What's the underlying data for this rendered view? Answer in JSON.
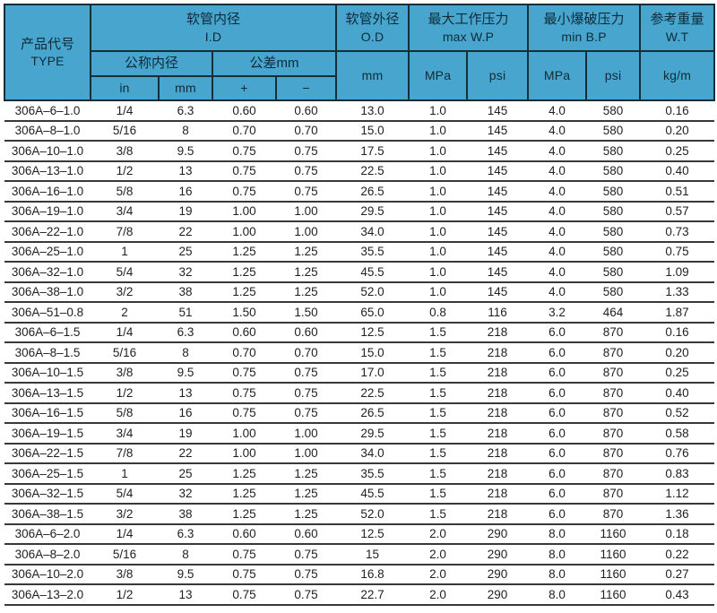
{
  "table": {
    "header": {
      "product_type": {
        "zh": "产品代号",
        "en": "TYPE"
      },
      "id_group": {
        "zh": "软管内径",
        "en": "I.D"
      },
      "nominal_id": "公称内径",
      "tolerance": "公差mm",
      "sub_in": "in",
      "sub_mm": "mm",
      "sub_plus": "+",
      "sub_minus": "−",
      "od_group": {
        "zh": "软管外径",
        "en": "O.D",
        "unit": "mm"
      },
      "wp_group": {
        "zh": "最大工作压力",
        "en": "max W.P",
        "unit_mpa": "MPa",
        "unit_psi": "psi"
      },
      "bp_group": {
        "zh": "最小爆破压力",
        "en": "min B.P",
        "unit_mpa": "MPa",
        "unit_psi": "psi"
      },
      "wt_group": {
        "zh": "参考重量",
        "en": "W.T",
        "unit": "kg/m"
      }
    },
    "column_keys": [
      "type",
      "id-in",
      "id-mm",
      "tol-plus",
      "tol-minus",
      "od-mm",
      "wp-mpa",
      "wp-psi",
      "bp-mpa",
      "bp-psi",
      "wt-kgm"
    ],
    "rows": [
      [
        "306A–6–1.0",
        "1/4",
        "6.3",
        "0.60",
        "0.60",
        "13.0",
        "1.0",
        "145",
        "4.0",
        "580",
        "0.16"
      ],
      [
        "306A–8–1.0",
        "5/16",
        "8",
        "0.70",
        "0.70",
        "15.0",
        "1.0",
        "145",
        "4.0",
        "580",
        "0.20"
      ],
      [
        "306A–10–1.0",
        "3/8",
        "9.5",
        "0.75",
        "0.75",
        "17.5",
        "1.0",
        "145",
        "4.0",
        "580",
        "0.25"
      ],
      [
        "306A–13–1.0",
        "1/2",
        "13",
        "0.75",
        "0.75",
        "22.5",
        "1.0",
        "145",
        "4.0",
        "580",
        "0.40"
      ],
      [
        "306A–16–1.0",
        "5/8",
        "16",
        "0.75",
        "0.75",
        "26.5",
        "1.0",
        "145",
        "4.0",
        "580",
        "0.51"
      ],
      [
        "306A–19–1.0",
        "3/4",
        "19",
        "1.00",
        "1.00",
        "29.5",
        "1.0",
        "145",
        "4.0",
        "580",
        "0.57"
      ],
      [
        "306A–22–1.0",
        "7/8",
        "22",
        "1.00",
        "1.00",
        "34.0",
        "1.0",
        "145",
        "4.0",
        "580",
        "0.73"
      ],
      [
        "306A–25–1.0",
        "1",
        "25",
        "1.25",
        "1.25",
        "35.5",
        "1.0",
        "145",
        "4.0",
        "580",
        "0.75"
      ],
      [
        "306A–32–1.0",
        "5/4",
        "32",
        "1.25",
        "1.25",
        "45.5",
        "1.0",
        "145",
        "4.0",
        "580",
        "1.09"
      ],
      [
        "306A–38–1.0",
        "3/2",
        "38",
        "1.25",
        "1.25",
        "52.0",
        "1.0",
        "145",
        "4.0",
        "580",
        "1.33"
      ],
      [
        "306A–51–0.8",
        "2",
        "51",
        "1.50",
        "1.50",
        "65.0",
        "0.8",
        "116",
        "3.2",
        "464",
        "1.87"
      ],
      [
        "306A–6–1.5",
        "1/4",
        "6.3",
        "0.60",
        "0.60",
        "12.5",
        "1.5",
        "218",
        "6.0",
        "870",
        "0.16"
      ],
      [
        "306A–8–1.5",
        "5/16",
        "8",
        "0.70",
        "0.70",
        "15.0",
        "1.5",
        "218",
        "6.0",
        "870",
        "0.20"
      ],
      [
        "306A–10–1.5",
        "3/8",
        "9.5",
        "0.75",
        "0.75",
        "17.0",
        "1.5",
        "218",
        "6.0",
        "870",
        "0.25"
      ],
      [
        "306A–13–1.5",
        "1/2",
        "13",
        "0.75",
        "0.75",
        "22.5",
        "1.5",
        "218",
        "6.0",
        "870",
        "0.40"
      ],
      [
        "306A–16–1.5",
        "5/8",
        "16",
        "0.75",
        "0.75",
        "26.5",
        "1.5",
        "218",
        "6.0",
        "870",
        "0.52"
      ],
      [
        "306A–19–1.5",
        "3/4",
        "19",
        "1.00",
        "1.00",
        "29.5",
        "1.5",
        "218",
        "6.0",
        "870",
        "0.58"
      ],
      [
        "306A–22–1.5",
        "7/8",
        "22",
        "1.00",
        "1.00",
        "34.0",
        "1.5",
        "218",
        "6.0",
        "870",
        "0.76"
      ],
      [
        "306A–25–1.5",
        "1",
        "25",
        "1.25",
        "1.25",
        "35.5",
        "1.5",
        "218",
        "6.0",
        "870",
        "0.83"
      ],
      [
        "306A–32–1.5",
        "5/4",
        "32",
        "1.25",
        "1.25",
        "45.5",
        "1.5",
        "218",
        "6.0",
        "870",
        "1.12"
      ],
      [
        "306A–38–1.5",
        "3/2",
        "38",
        "1.25",
        "1.25",
        "52.0",
        "1.5",
        "218",
        "6.0",
        "870",
        "1.36"
      ],
      [
        "306A–6–2.0",
        "1/4",
        "6.3",
        "0.60",
        "0.60",
        "12.5",
        "2.0",
        "290",
        "8.0",
        "1160",
        "0.18"
      ],
      [
        "306A–8–2.0",
        "5/16",
        "8",
        "0.75",
        "0.75",
        "15",
        "2.0",
        "290",
        "8.0",
        "1160",
        "0.22"
      ],
      [
        "306A–10–2.0",
        "3/8",
        "9.5",
        "0.75",
        "0.75",
        "16.8",
        "2.0",
        "290",
        "8.0",
        "1160",
        "0.27"
      ],
      [
        "306A–13–2.0",
        "1/2",
        "13",
        "0.75",
        "0.75",
        "22.7",
        "2.0",
        "290",
        "8.0",
        "1160",
        "0.43"
      ]
    ]
  },
  "colors": {
    "header_bg": "#47a5ce",
    "header_border": "#142e3a",
    "header_text": "#0f2b38",
    "body_text": "#1f1f1f",
    "row_line": "#383838"
  }
}
